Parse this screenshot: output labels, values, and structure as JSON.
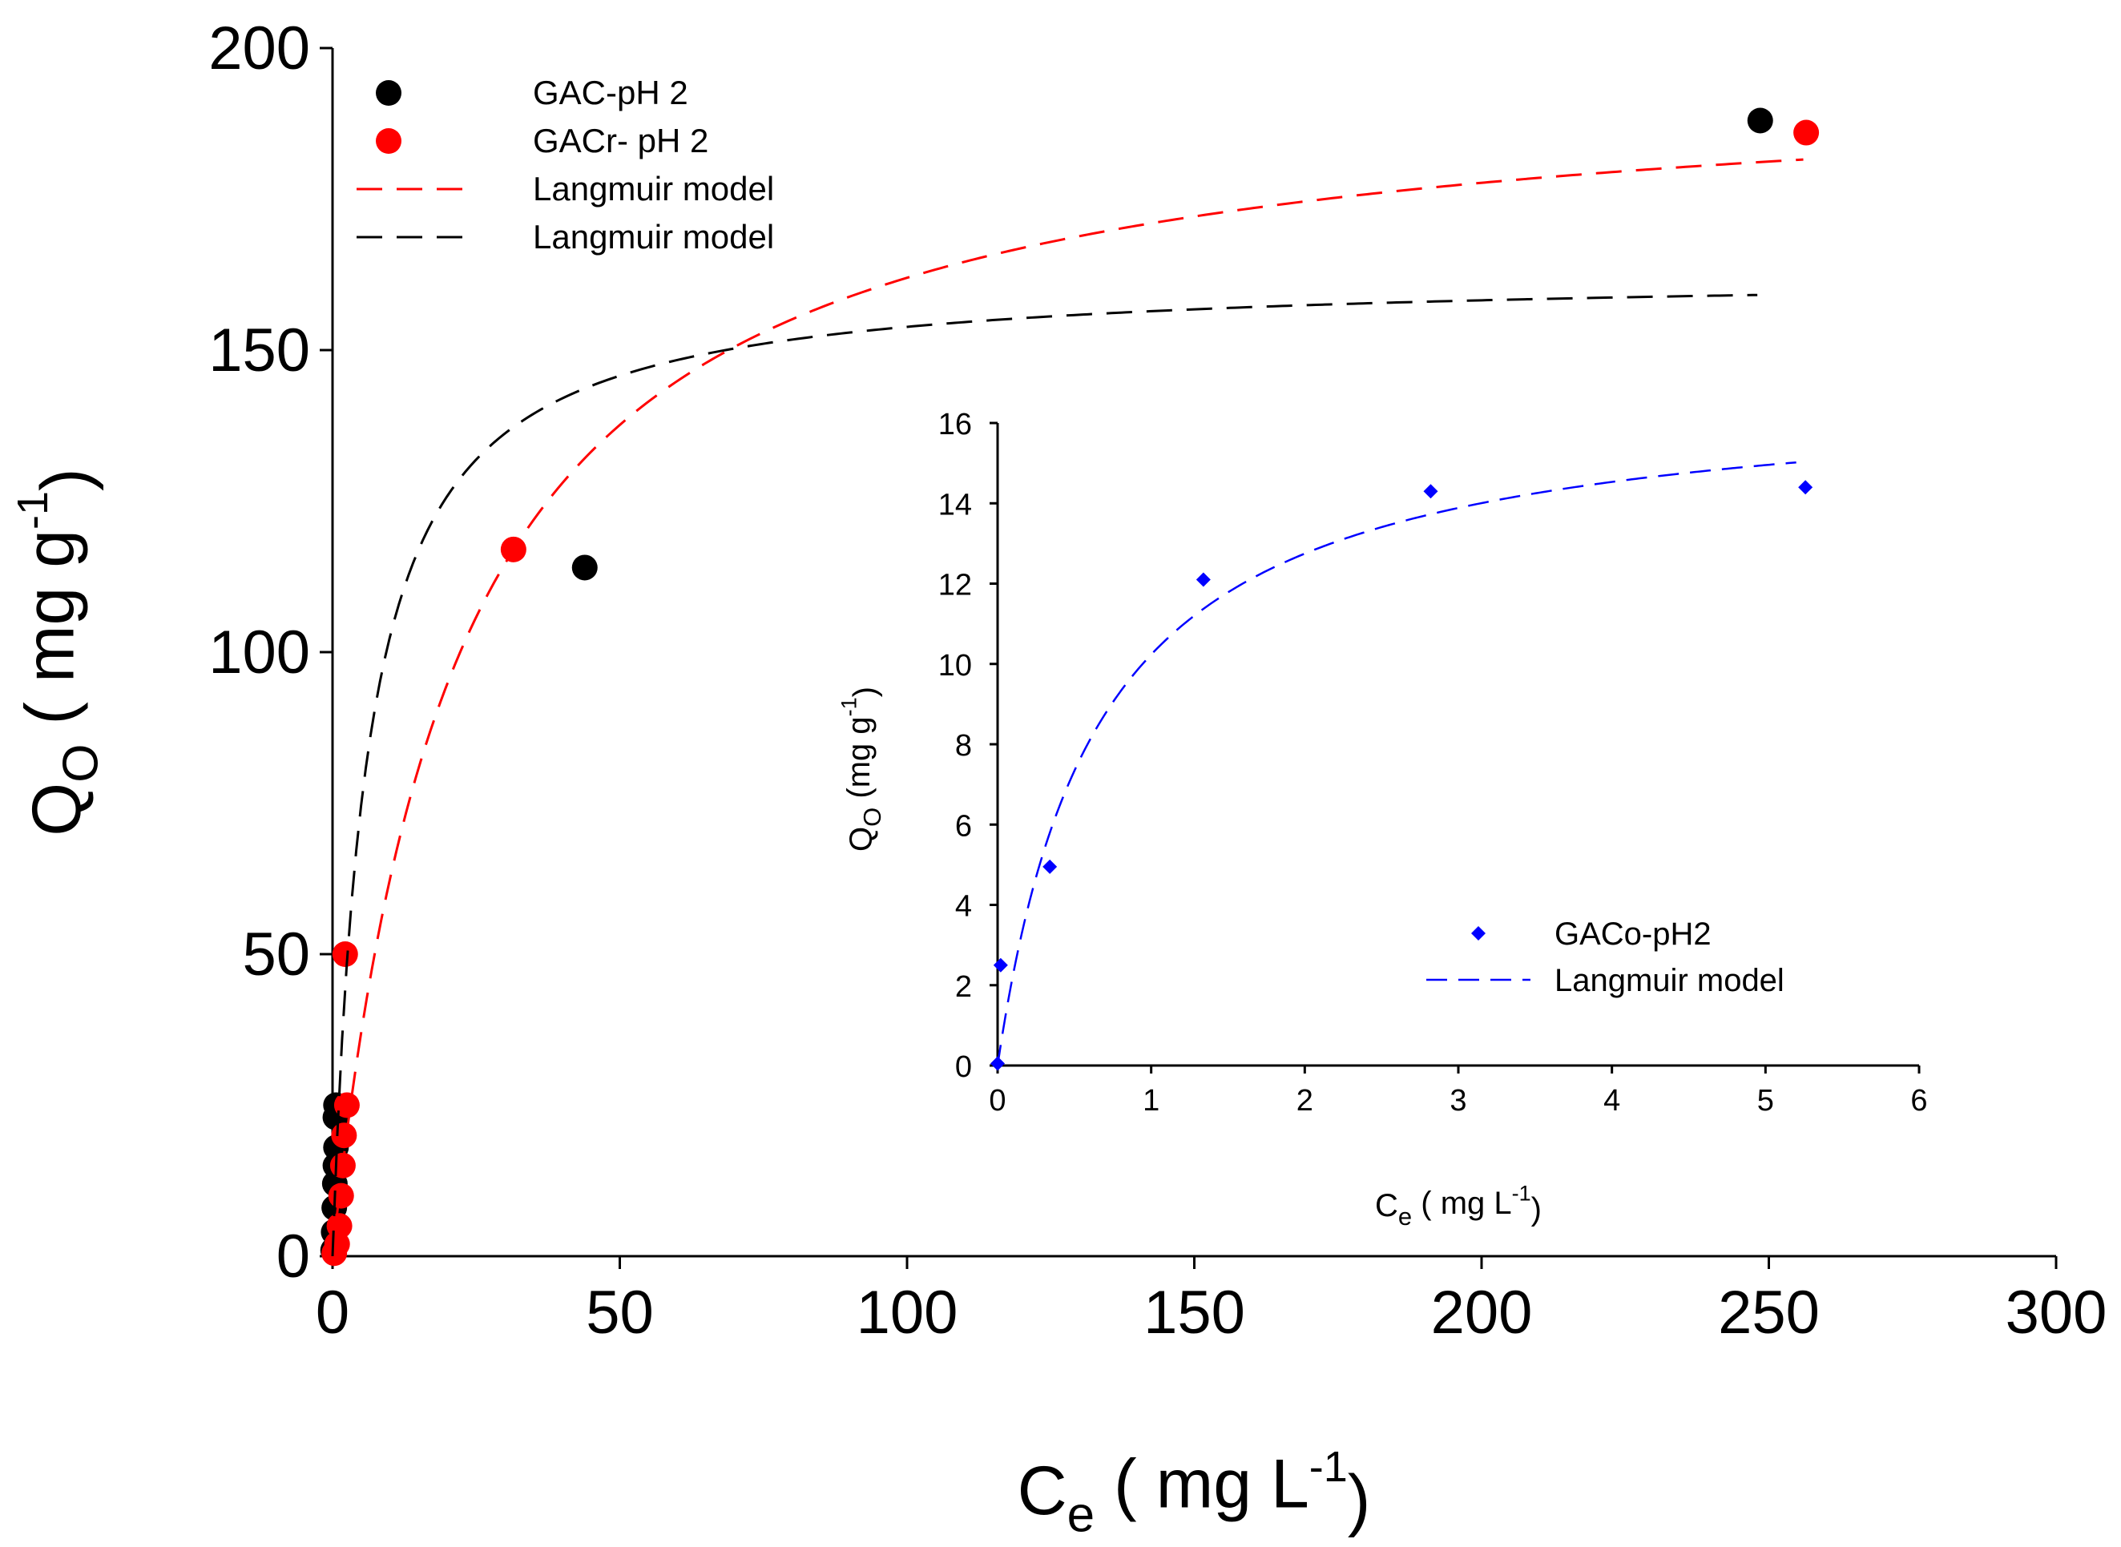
{
  "chart_data": [
    {
      "type": "scatter",
      "id": "main",
      "xlabel": {
        "base": "C",
        "sub": "e",
        "rest": " ( mg L",
        "sup": "-1",
        "close": ")"
      },
      "ylabel": {
        "base": "Q",
        "sub": "O",
        "rest": " ( mg g",
        "sup": "-1",
        "close": ")"
      },
      "xlim": [
        0,
        300
      ],
      "ylim": [
        0,
        200
      ],
      "xticks": [
        0,
        50,
        100,
        150,
        200,
        250,
        300
      ],
      "yticks": [
        0,
        50,
        100,
        150,
        200
      ],
      "legend_position": "top-left",
      "series": [
        {
          "name": "GAC-pH 2",
          "kind": "scatter",
          "marker": "circle",
          "color": "#000000",
          "points": [
            [
              0.1,
              1
            ],
            [
              0.2,
              4
            ],
            [
              0.3,
              8
            ],
            [
              0.4,
              12
            ],
            [
              0.5,
              15
            ],
            [
              0.6,
              18
            ],
            [
              0.5,
              23
            ],
            [
              0.6,
              25
            ],
            [
              43.9,
              114
            ],
            [
              248.5,
              188
            ]
          ]
        },
        {
          "name": "GACr- pH 2",
          "kind": "scatter",
          "marker": "circle",
          "color": "#ff0000",
          "points": [
            [
              0.3,
              0.5
            ],
            [
              0.8,
              2
            ],
            [
              1.2,
              5
            ],
            [
              1.5,
              10
            ],
            [
              1.8,
              15
            ],
            [
              2.0,
              20
            ],
            [
              2.5,
              25
            ],
            [
              2.2,
              50
            ],
            [
              31.5,
              117
            ],
            [
              256.5,
              186
            ]
          ]
        },
        {
          "name": "Langmuir model",
          "kind": "line",
          "dash": "long",
          "color": "#ff0000",
          "model": {
            "qmax": 196.8,
            "K": 0.0465,
            "xmin": 0,
            "xmax": 256
          }
        },
        {
          "name": "Langmuir model",
          "kind": "line",
          "dash": "long",
          "color": "#000000",
          "model": {
            "qmax": 162.9,
            "K": 0.17,
            "xmin": 0,
            "xmax": 248
          }
        }
      ]
    },
    {
      "type": "scatter",
      "id": "inset",
      "xlabel": {
        "base": "C",
        "sub": "e",
        "rest": " ( mg L",
        "sup": "-1",
        "close": ")"
      },
      "ylabel": {
        "base": "Q",
        "sub": "O",
        "rest": " (mg g",
        "sup": "-1",
        "close": ")"
      },
      "xlim": [
        0,
        6
      ],
      "ylim": [
        0,
        16
      ],
      "xticks": [
        0,
        1,
        2,
        3,
        4,
        5,
        6
      ],
      "yticks": [
        0,
        2,
        4,
        6,
        8,
        10,
        12,
        14,
        16
      ],
      "legend_position": "bottom-right",
      "series": [
        {
          "name": "GACo-pH2",
          "kind": "scatter",
          "marker": "diamond",
          "color": "#0000ff",
          "points": [
            [
              0.0,
              0.05
            ],
            [
              0.02,
              2.5
            ],
            [
              0.34,
              4.95
            ],
            [
              1.34,
              12.1
            ],
            [
              2.82,
              14.3
            ],
            [
              5.26,
              14.4
            ]
          ]
        },
        {
          "name": "Langmuir model",
          "kind": "line",
          "dash": "long",
          "color": "#0000ff",
          "model": {
            "qmax": 16.9,
            "K": 1.535,
            "xmin": 0,
            "xmax": 5.2
          }
        }
      ]
    }
  ]
}
